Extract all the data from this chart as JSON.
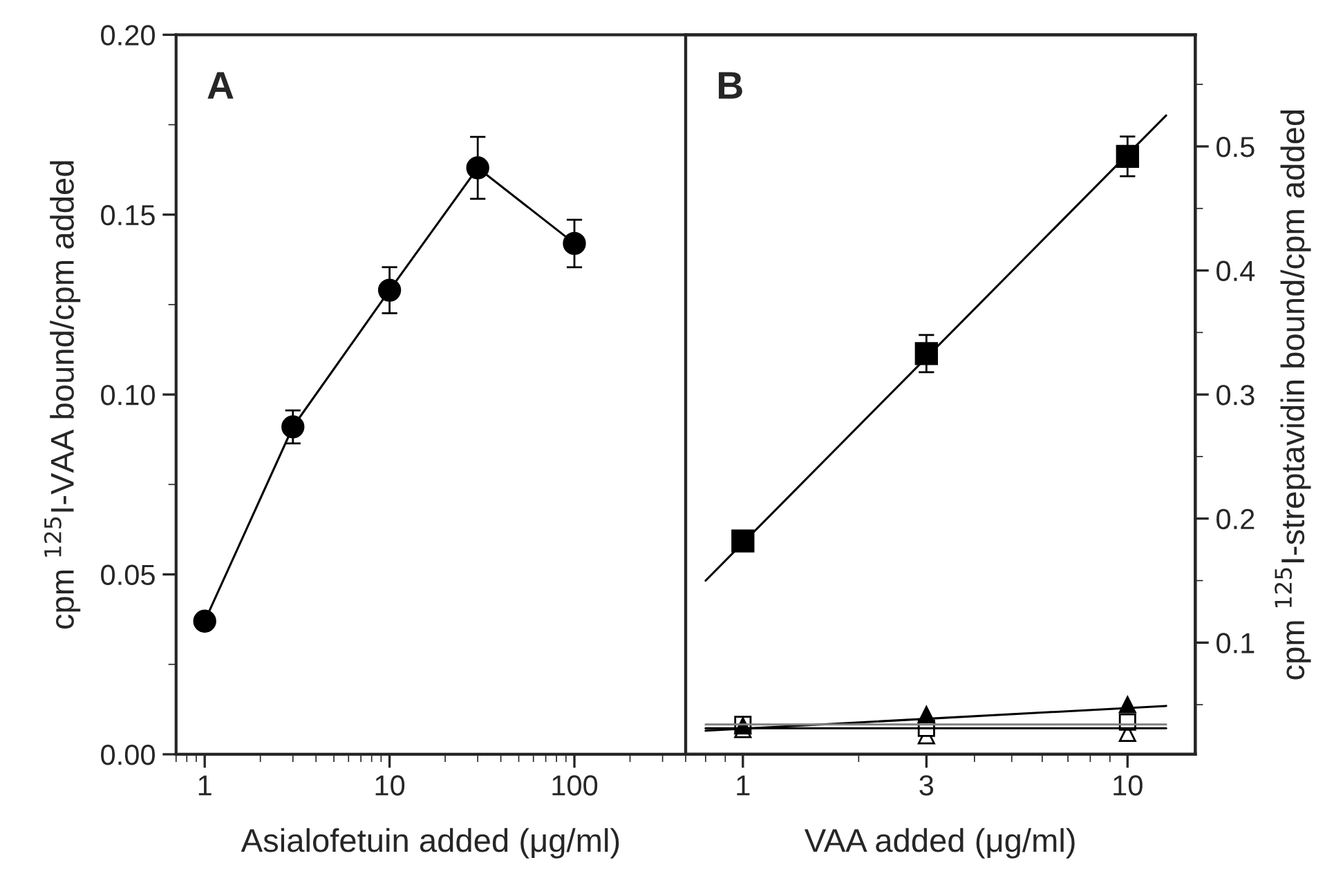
{
  "chart_data": [
    {
      "type": "line",
      "annotations": [
        "A"
      ],
      "xlabel": "Asialofetuin added (μg/ml)",
      "ylabel": "cpm $^{125}$I-VAA bound/cpm added",
      "log": "x",
      "xlim": [
        0.7,
        400
      ],
      "xticks": [
        1,
        10,
        100
      ],
      "ylim": [
        0,
        0.2
      ],
      "yticks": [
        {
          "value": 0,
          "label": "0.00"
        },
        {
          "value": 0.05,
          "label": "0.05"
        },
        {
          "value": 0.1,
          "label": "0.10"
        },
        {
          "value": 0.15,
          "label": "0.15"
        },
        {
          "value": 0.2,
          "label": "0.20"
        }
      ],
      "grid": false,
      "legend": false,
      "series": [
        {
          "color": "#000000",
          "marker": "circle",
          "x": [
            1,
            3,
            10,
            30,
            100
          ],
          "values": [
            0.037,
            0.091,
            0.129,
            0.163,
            0.142
          ],
          "errors": [
            null,
            0.0046,
            0.0064,
            0.0086,
            0.0066
          ]
        }
      ]
    },
    {
      "type": "scatter",
      "annotations": [
        "B"
      ],
      "xlabel": "VAA added (μg/ml)",
      "y2label": "cpm $^{125}$I-streptavidin bound/cpm added",
      "log": "x",
      "xlim": [
        0.71,
        15
      ],
      "xticks": [
        1,
        3,
        10
      ],
      "y2lim": [
        0.01,
        0.59
      ],
      "y2ticks": [
        0.1,
        0.2,
        0.3,
        0.4,
        0.5
      ],
      "grid": false,
      "legend": false,
      "series": [
        {
          "axis": "y2",
          "color": "#000000",
          "marker": "square",
          "x": [
            1,
            3,
            10
          ],
          "values": [
            0.182,
            0.333,
            0.492
          ],
          "errors": [
            null,
            0.015,
            0.016
          ]
        },
        {
          "axis": "y2",
          "color": "#ffffff",
          "marker": "triangle",
          "x": [
            1,
            3,
            10
          ],
          "values": [
            0.03,
            0.025,
            0.027
          ]
        },
        {
          "axis": "y2",
          "color": "#ffffff",
          "marker": "square",
          "x": [
            1,
            3,
            10
          ],
          "values": [
            0.034,
            0.031,
            0.036
          ]
        },
        {
          "axis": "y2",
          "color": "#000000",
          "marker": "triangle",
          "x": [
            1,
            3,
            10
          ],
          "values": [
            0.033,
            0.042,
            0.05
          ]
        },
        {
          "type": "line",
          "axis": "y2",
          "color": "#000000",
          "marker": "none",
          "x": [
            0.8,
            12.6
          ],
          "values": [
            0.15,
            0.525
          ]
        },
        {
          "type": "line",
          "axis": "y2",
          "color": "#000000",
          "marker": "none",
          "x": [
            0.8,
            12.6
          ],
          "values": [
            0.029,
            0.049
          ]
        },
        {
          "type": "line",
          "axis": "y2",
          "color": "#808080",
          "marker": "none",
          "x": [
            0.8,
            12.6
          ],
          "values": [
            0.034,
            0.034
          ]
        },
        {
          "type": "line",
          "axis": "y2",
          "color": "#000000",
          "marker": "none",
          "x": [
            0.8,
            12.6
          ],
          "values": [
            0.031,
            0.031
          ]
        }
      ]
    }
  ]
}
